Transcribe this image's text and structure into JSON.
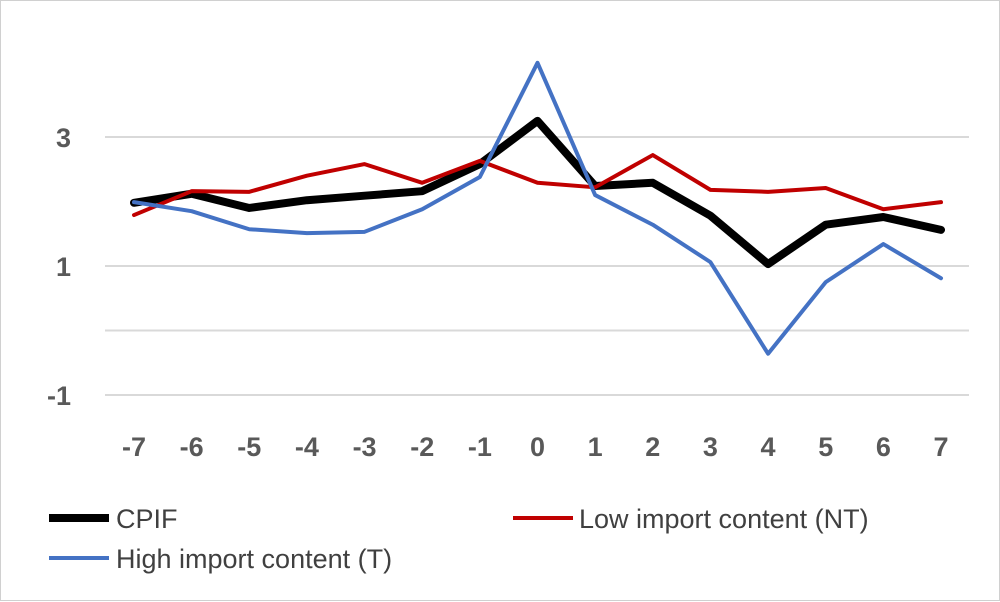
{
  "chart_data": {
    "type": "line",
    "title": "",
    "xlabel": "",
    "ylabel": "",
    "x": [
      -7,
      -6,
      -5,
      -4,
      -3,
      -2,
      -1,
      0,
      1,
      2,
      3,
      4,
      5,
      6,
      7
    ],
    "ylim": [
      -1,
      4.2
    ],
    "y_gridlines": [
      3,
      1,
      0,
      -1
    ],
    "y_tick_labels": [
      "3",
      "1",
      "-1"
    ],
    "x_tick_labels": [
      "-7",
      "-6",
      "-5",
      "-4",
      "-3",
      "-2",
      "-1",
      "0",
      "1",
      "2",
      "3",
      "4",
      "5",
      "6",
      "7"
    ],
    "grid": true,
    "legend_position": "bottom",
    "series": [
      {
        "name": "CPIF",
        "color": "#000000",
        "values": [
          1.98,
          2.12,
          1.9,
          2.02,
          2.09,
          2.16,
          2.58,
          3.25,
          2.24,
          2.29,
          1.78,
          1.03,
          1.64,
          1.76,
          1.56
        ]
      },
      {
        "name": "Low import content (NT)",
        "color": "#C00000",
        "values": [
          1.79,
          2.16,
          2.15,
          2.4,
          2.58,
          2.29,
          2.63,
          2.29,
          2.22,
          2.72,
          2.18,
          2.15,
          2.21,
          1.88,
          1.99
        ]
      },
      {
        "name": "High import content (T)",
        "color": "#4472C4",
        "values": [
          1.99,
          1.85,
          1.57,
          1.51,
          1.53,
          1.88,
          2.38,
          4.15,
          2.1,
          1.64,
          1.06,
          -0.36,
          0.75,
          1.34,
          0.81
        ]
      }
    ]
  }
}
